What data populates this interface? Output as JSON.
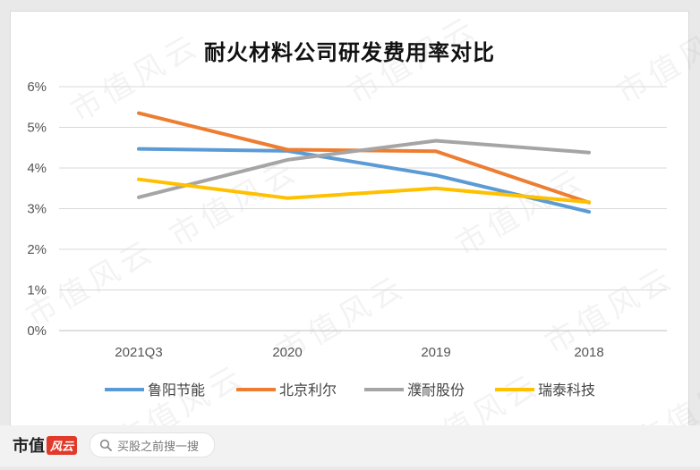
{
  "chart_data": {
    "type": "line",
    "title": "耐火材料公司研发费用率对比",
    "categories": [
      "2021Q3",
      "2020",
      "2019",
      "2018"
    ],
    "ylim": [
      0,
      6
    ],
    "yticks": [
      "0%",
      "1%",
      "2%",
      "3%",
      "4%",
      "5%",
      "6%"
    ],
    "grid": true,
    "legend_position": "bottom",
    "series": [
      {
        "name": "鲁阳节能",
        "color": "#5b9bd5",
        "values": [
          4.47,
          4.42,
          3.82,
          2.92
        ]
      },
      {
        "name": "北京利尔",
        "color": "#ed7d31",
        "values": [
          5.35,
          4.45,
          4.41,
          3.15
        ]
      },
      {
        "name": "濮耐股份",
        "color": "#a5a5a5",
        "values": [
          3.28,
          4.2,
          4.67,
          4.38
        ]
      },
      {
        "name": "瑞泰科技",
        "color": "#ffc000",
        "values": [
          3.72,
          3.26,
          3.5,
          3.16
        ]
      }
    ]
  },
  "watermark": "市值风云",
  "footer": {
    "brand": "市值",
    "brand_mark": "风云",
    "search_placeholder": "买股之前搜一搜"
  }
}
